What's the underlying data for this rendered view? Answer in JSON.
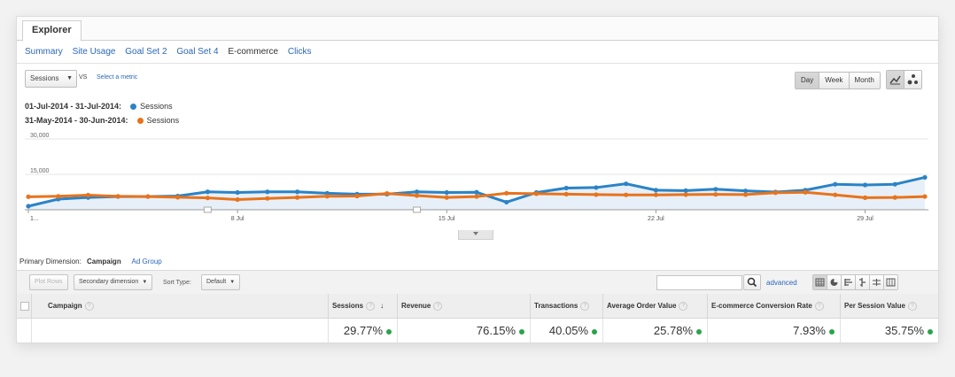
{
  "tabs": {
    "explorer": "Explorer"
  },
  "subnav": [
    "Summary",
    "Site Usage",
    "Goal Set 2",
    "Goal Set 4",
    "E-commerce",
    "Clicks"
  ],
  "metric": {
    "selected": "Sessions",
    "vs": "VS",
    "select_metric": "Select a metric"
  },
  "period_buttons": [
    "Day",
    "Week",
    "Month"
  ],
  "legend": [
    {
      "range": "01-Jul-2014 - 31-Jul-2014:",
      "series": "Sessions",
      "color": "#2b83c6"
    },
    {
      "range": "31-May-2014 - 30-Jun-2014:",
      "series": "Sessions",
      "color": "#e8731c"
    }
  ],
  "chart_data": {
    "type": "line",
    "y_ticks": [
      "30,000",
      "15,000"
    ],
    "ylim": [
      0,
      30000
    ],
    "x_ticks": [
      "1...",
      "8 Jul",
      "15 Jul",
      "22 Jul",
      "29 Jul"
    ],
    "series": [
      {
        "name": "Sessions",
        "color": "#2b83c6",
        "values": [
          1500,
          4500,
          5200,
          5600,
          5600,
          5800,
          7600,
          7300,
          7600,
          7600,
          7000,
          6600,
          6600,
          7600,
          7300,
          7400,
          3200,
          7300,
          9200,
          9400,
          11000,
          8300,
          8100,
          8700,
          8000,
          7500,
          8300,
          10800,
          10500,
          10800,
          13700
        ]
      },
      {
        "name": "Sessions",
        "color": "#e8731c",
        "values": [
          5500,
          5700,
          6200,
          5700,
          5600,
          5300,
          5000,
          4300,
          4800,
          5200,
          5700,
          5800,
          6900,
          6000,
          5200,
          5600,
          7000,
          6800,
          6600,
          6400,
          6300,
          6300,
          6400,
          6500,
          6400,
          7200,
          7400,
          6300,
          5100,
          5200,
          5600
        ]
      }
    ]
  },
  "primary_dimension": {
    "label": "Primary Dimension:",
    "active": "Campaign",
    "other": "Ad Group"
  },
  "toolbar": {
    "plot_rows": "Plot Rows",
    "secondary_dimension": "Secondary dimension",
    "sort_type_label": "Sort Type:",
    "sort_type_value": "Default",
    "advanced": "advanced"
  },
  "table": {
    "headers": [
      "Campaign",
      "Sessions",
      "Revenue",
      "Transactions",
      "Average Order Value",
      "E-commerce Conversion Rate",
      "Per Session Value"
    ],
    "row": [
      "29.77%",
      "76.15%",
      "40.05%",
      "25.78%",
      "7.93%",
      "35.75%"
    ]
  }
}
